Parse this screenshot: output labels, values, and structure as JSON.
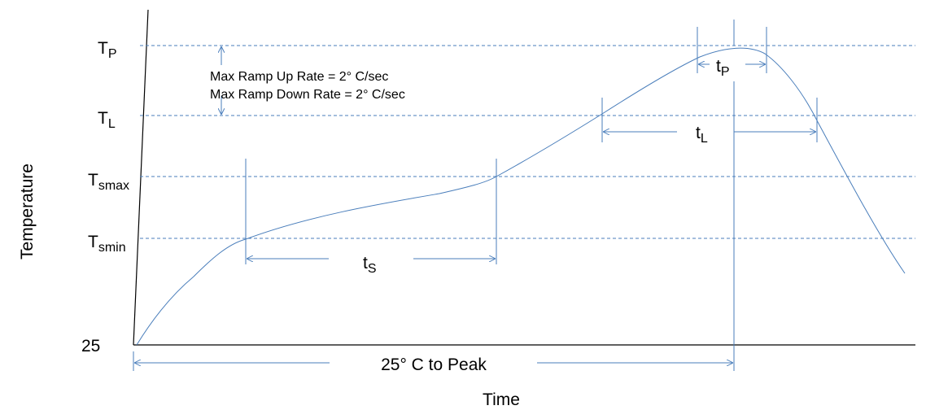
{
  "colors": {
    "axis": "#000000",
    "curve": "#4a7ebb",
    "guide": "#4a7ebb",
    "text": "#000000"
  },
  "axes": {
    "y_label": "Temperature",
    "x_label": "Time",
    "origin_label": "25"
  },
  "levels": {
    "tp": {
      "main": "T",
      "sub": "P"
    },
    "tl": {
      "main": "T",
      "sub": "L"
    },
    "tsmax": {
      "main": "T",
      "sub": "smax"
    },
    "tsmin": {
      "main": "T",
      "sub": "smin"
    }
  },
  "annotations": {
    "ramp_up": "Max Ramp Up Rate = 2° C/sec",
    "ramp_down": "Max Ramp Down Rate = 2° C/sec",
    "to_peak": "25° C to Peak"
  },
  "intervals": {
    "ts": {
      "main": "t",
      "sub": "S"
    },
    "tl": {
      "main": "t",
      "sub": "L"
    },
    "tp": {
      "main": "t",
      "sub": "P"
    }
  }
}
